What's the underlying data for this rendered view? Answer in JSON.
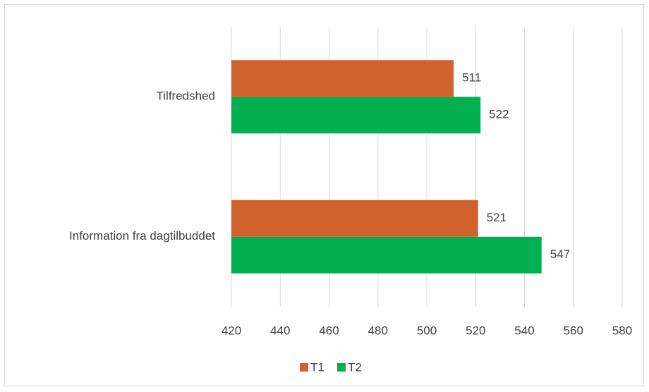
{
  "chart_data": {
    "type": "bar",
    "orientation": "horizontal",
    "categories": [
      "Tilfredshed",
      "Information fra dagtilbuddet"
    ],
    "series": [
      {
        "name": "T1",
        "color": "#d2622d",
        "values": [
          511,
          521
        ]
      },
      {
        "name": "T2",
        "color": "#00b050",
        "values": [
          522,
          547
        ]
      }
    ],
    "xlim": [
      420,
      580
    ],
    "xticks": [
      420,
      440,
      460,
      480,
      500,
      520,
      540,
      560,
      580
    ],
    "grid": true,
    "legend": "bottom"
  }
}
